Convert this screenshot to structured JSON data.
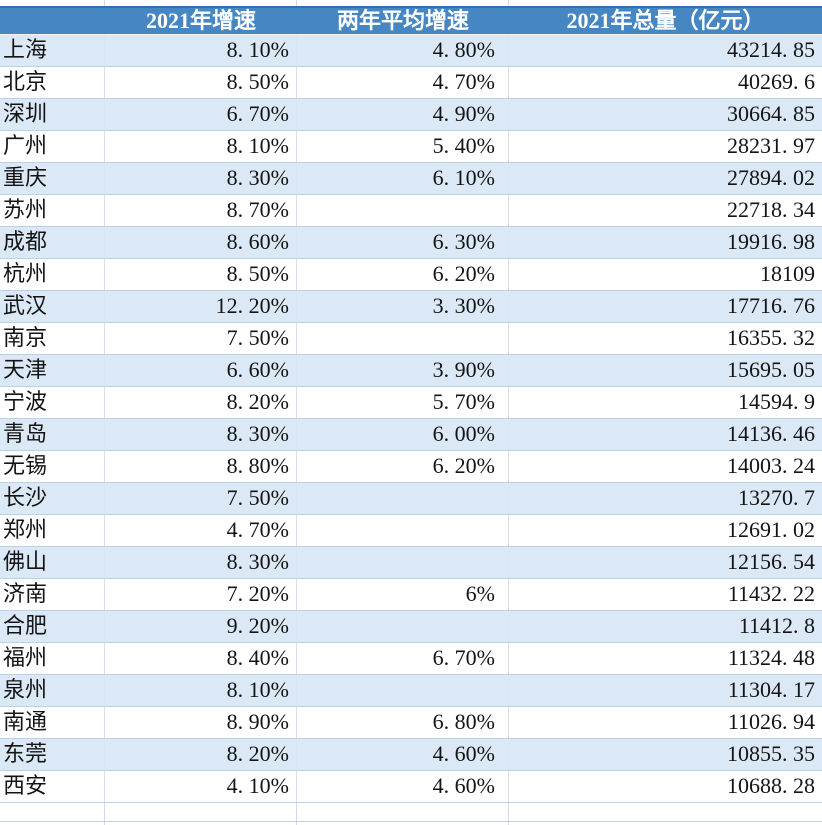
{
  "chart_data": {
    "type": "table",
    "columns": [
      "",
      "2021年增速",
      "两年平均增速",
      "2021年总量（亿元）"
    ],
    "rows": [
      {
        "city": "上海",
        "growth_2021": "8. 10%",
        "avg_growth_2yr": "4. 80%",
        "total_2021": "43214. 85"
      },
      {
        "city": "北京",
        "growth_2021": "8. 50%",
        "avg_growth_2yr": "4. 70%",
        "total_2021": "40269. 6"
      },
      {
        "city": "深圳",
        "growth_2021": "6. 70%",
        "avg_growth_2yr": "4. 90%",
        "total_2021": "30664. 85"
      },
      {
        "city": "广州",
        "growth_2021": "8. 10%",
        "avg_growth_2yr": "5. 40%",
        "total_2021": "28231. 97"
      },
      {
        "city": "重庆",
        "growth_2021": "8. 30%",
        "avg_growth_2yr": "6. 10%",
        "total_2021": "27894. 02"
      },
      {
        "city": "苏州",
        "growth_2021": "8. 70%",
        "avg_growth_2yr": "",
        "total_2021": "22718. 34"
      },
      {
        "city": "成都",
        "growth_2021": "8. 60%",
        "avg_growth_2yr": "6. 30%",
        "total_2021": "19916. 98"
      },
      {
        "city": "杭州",
        "growth_2021": "8. 50%",
        "avg_growth_2yr": "6. 20%",
        "total_2021": "18109"
      },
      {
        "city": "武汉",
        "growth_2021": "12. 20%",
        "avg_growth_2yr": "3. 30%",
        "total_2021": "17716. 76"
      },
      {
        "city": "南京",
        "growth_2021": "7. 50%",
        "avg_growth_2yr": "",
        "total_2021": "16355. 32"
      },
      {
        "city": "天津",
        "growth_2021": "6. 60%",
        "avg_growth_2yr": "3. 90%",
        "total_2021": "15695. 05"
      },
      {
        "city": "宁波",
        "growth_2021": "8. 20%",
        "avg_growth_2yr": "5. 70%",
        "total_2021": "14594. 9"
      },
      {
        "city": "青岛",
        "growth_2021": "8. 30%",
        "avg_growth_2yr": "6. 00%",
        "total_2021": "14136. 46"
      },
      {
        "city": "无锡",
        "growth_2021": "8. 80%",
        "avg_growth_2yr": "6. 20%",
        "total_2021": "14003. 24"
      },
      {
        "city": "长沙",
        "growth_2021": "7. 50%",
        "avg_growth_2yr": "",
        "total_2021": "13270. 7"
      },
      {
        "city": "郑州",
        "growth_2021": "4. 70%",
        "avg_growth_2yr": "",
        "total_2021": "12691. 02"
      },
      {
        "city": "佛山",
        "growth_2021": "8. 30%",
        "avg_growth_2yr": "",
        "total_2021": "12156. 54"
      },
      {
        "city": "济南",
        "growth_2021": "7. 20%",
        "avg_growth_2yr": "6%",
        "total_2021": "11432. 22"
      },
      {
        "city": "合肥",
        "growth_2021": "9. 20%",
        "avg_growth_2yr": "",
        "total_2021": "11412. 8"
      },
      {
        "city": "福州",
        "growth_2021": "8. 40%",
        "avg_growth_2yr": "6. 70%",
        "total_2021": "11324. 48"
      },
      {
        "city": "泉州",
        "growth_2021": "8. 10%",
        "avg_growth_2yr": "",
        "total_2021": "11304. 17"
      },
      {
        "city": "南通",
        "growth_2021": "8. 90%",
        "avg_growth_2yr": "6. 80%",
        "total_2021": "11026. 94"
      },
      {
        "city": "东莞",
        "growth_2021": "8. 20%",
        "avg_growth_2yr": "4. 60%",
        "total_2021": "10855. 35"
      },
      {
        "city": "西安",
        "growth_2021": "4. 10%",
        "avg_growth_2yr": "4. 60%",
        "total_2021": "10688. 28"
      }
    ]
  },
  "colors": {
    "header_bg": "#4687c3",
    "header_text": "#ffffff",
    "header_top_edge": "#3572ad",
    "alt_row_bg": "#dbe8f6",
    "row_bg": "#ffffff",
    "grid_line": "#b9d2ea",
    "vertical_line": "#d3dfed",
    "cell_text": "#141414"
  }
}
